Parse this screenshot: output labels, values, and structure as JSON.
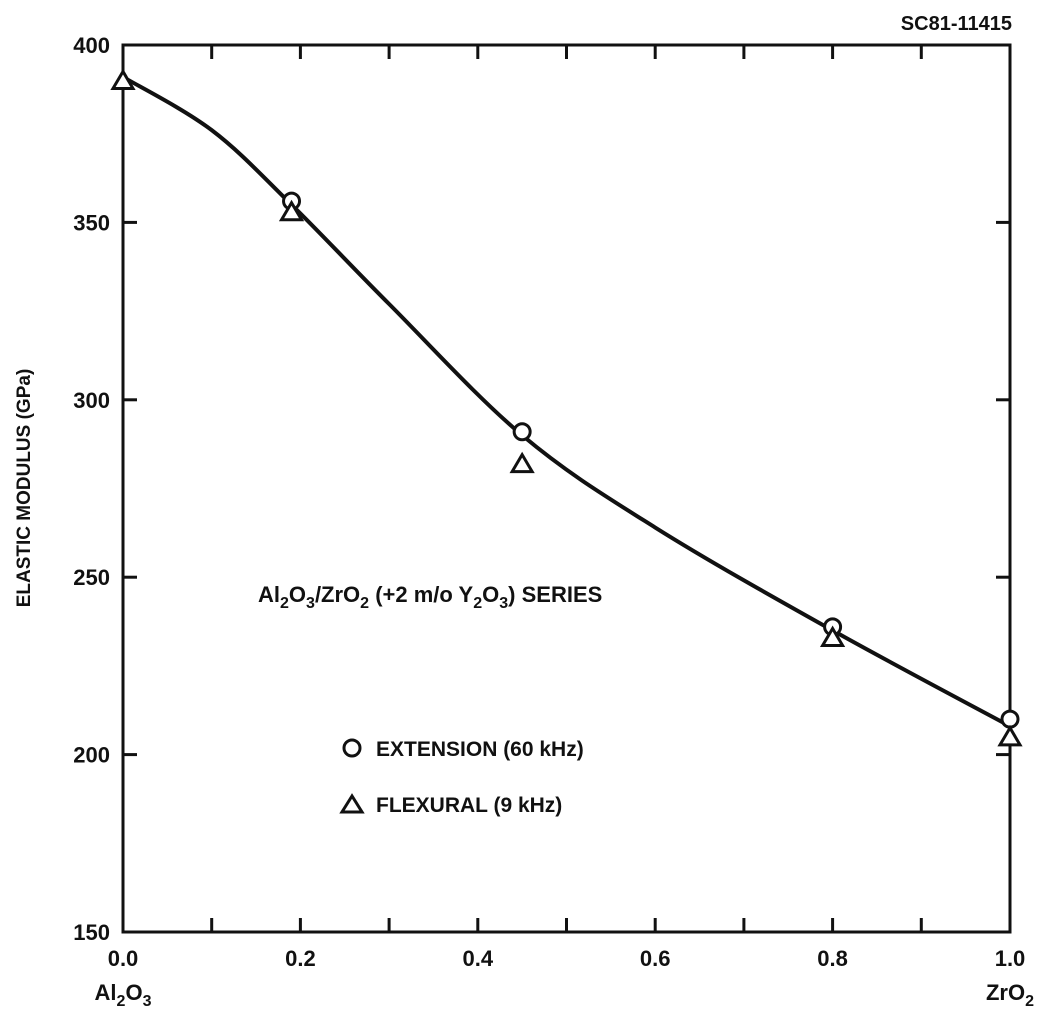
{
  "figure_id": "SC81-11415",
  "chart_data": {
    "type": "scatter",
    "title": "",
    "ylabel": "ELASTIC MODULUS (GPa)",
    "xlabel": "",
    "xlim": [
      0.0,
      1.0
    ],
    "ylim": [
      150,
      400
    ],
    "x_ticks": [
      0.0,
      0.2,
      0.4,
      0.6,
      0.8,
      1.0
    ],
    "x_tick_labels": [
      "0.0",
      "0.2",
      "0.4",
      "0.6",
      "0.8",
      "1.0"
    ],
    "y_ticks": [
      150,
      200,
      250,
      300,
      350,
      400
    ],
    "y_tick_labels": [
      "150",
      "200",
      "250",
      "300",
      "350",
      "400"
    ],
    "x_end_labels": {
      "left": "Al2O3",
      "right": "ZrO2"
    },
    "annotation": "Al2O3/ZrO2 (+2 m/o Y2O3) SERIES",
    "legend_position": "lower-left inside",
    "series": [
      {
        "name": "EXTENSION (60 kHz)",
        "marker": "circle",
        "points": [
          [
            0.19,
            356
          ],
          [
            0.45,
            291
          ],
          [
            0.8,
            236
          ],
          [
            1.0,
            210
          ]
        ]
      },
      {
        "name": "FLEXURAL (9 kHz)",
        "marker": "triangle",
        "points": [
          [
            0.0,
            390
          ],
          [
            0.19,
            353
          ],
          [
            0.45,
            282
          ],
          [
            0.8,
            233
          ],
          [
            1.0,
            205
          ]
        ]
      }
    ],
    "fit_curve": {
      "points": [
        [
          0.0,
          391
        ],
        [
          0.1,
          376
        ],
        [
          0.19,
          355
        ],
        [
          0.3,
          327
        ],
        [
          0.45,
          290
        ],
        [
          0.6,
          264
        ],
        [
          0.8,
          235
        ],
        [
          1.0,
          208
        ]
      ]
    }
  }
}
